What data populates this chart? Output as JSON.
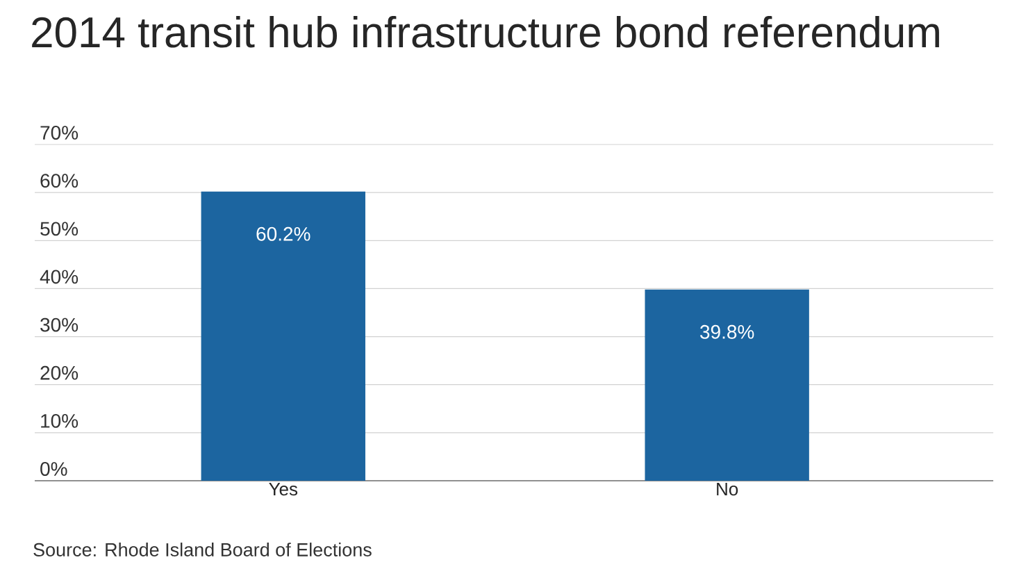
{
  "chart_data": {
    "type": "bar",
    "title": "2014 transit hub infrastructure bond referendum",
    "categories": [
      "Yes",
      "No"
    ],
    "values": [
      60.2,
      39.8
    ],
    "value_labels": [
      "60.2%",
      "39.8%"
    ],
    "color": "#1c65a0",
    "ylim": [
      0,
      70
    ],
    "yticks": [
      {
        "value": 0,
        "label": "0%"
      },
      {
        "value": 10,
        "label": "10%"
      },
      {
        "value": 20,
        "label": "20%"
      },
      {
        "value": 30,
        "label": "30%"
      },
      {
        "value": 40,
        "label": "40%"
      },
      {
        "value": 50,
        "label": "50%"
      },
      {
        "value": 60,
        "label": "60%"
      },
      {
        "value": 70,
        "label": "70%"
      }
    ],
    "grid": "y",
    "annotations": [
      "Source: Rhode Island Board of Elections"
    ]
  }
}
